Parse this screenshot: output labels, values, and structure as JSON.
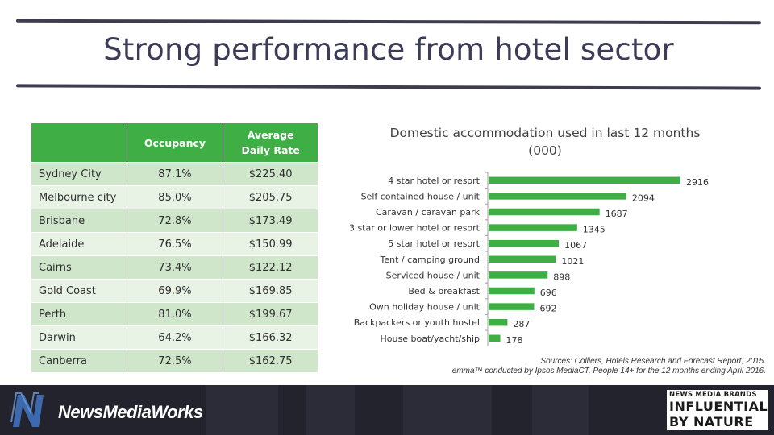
{
  "page": {
    "title": "Strong performance from hotel sector"
  },
  "table": {
    "headers": [
      "",
      "Occupancy",
      "Average Daily Rate"
    ],
    "header_color": "#3eae45",
    "rows": [
      {
        "city": "Sydney City",
        "occupancy": "87.1%",
        "adr": "$225.40"
      },
      {
        "city": "Melbourne city",
        "occupancy": "85.0%",
        "adr": "$205.75"
      },
      {
        "city": "Brisbane",
        "occupancy": "72.8%",
        "adr": "$173.49"
      },
      {
        "city": "Adelaide",
        "occupancy": "76.5%",
        "adr": "$150.99"
      },
      {
        "city": "Cairns",
        "occupancy": "73.4%",
        "adr": "$122.12"
      },
      {
        "city": "Gold Coast",
        "occupancy": "69.9%",
        "adr": "$169.85"
      },
      {
        "city": "Perth",
        "occupancy": "81.0%",
        "adr": "$199.67"
      },
      {
        "city": "Darwin",
        "occupancy": "64.2%",
        "adr": "$166.32"
      },
      {
        "city": "Canberra",
        "occupancy": "72.5%",
        "adr": "$162.75"
      }
    ]
  },
  "chart_data": {
    "type": "bar",
    "orientation": "horizontal",
    "title_line1": "Domestic accommodation used in last 12 months",
    "title_line2": "(000)",
    "categories": [
      "4 star hotel or resort",
      "Self contained house / unit",
      "Caravan / caravan park",
      "3 star or lower hotel or resort",
      "5 star hotel or resort",
      "Tent / camping ground",
      "Serviced house / unit",
      "Bed & breakfast",
      "Own holiday house / unit",
      "Backpackers or youth hostel",
      "House boat/yacht/ship"
    ],
    "values": [
      2916,
      2094,
      1687,
      1345,
      1067,
      1021,
      898,
      696,
      692,
      287,
      178
    ],
    "xlim": [
      0,
      3500
    ],
    "data_labels": true,
    "grid": false,
    "bar_color": "#3eae45"
  },
  "sources": {
    "line1": "Sources: Colliers, Hotels Research and Forecast Report, 2015.",
    "line2": "emma™ conducted by Ipsos MediaCT, People 14+ for the 12 months ending April 2016."
  },
  "footer": {
    "logo_text": "NewsMediaWorks",
    "badge_line1": "NEWS MEDIA BRANDS",
    "badge_line2": "INFLUENTIAL",
    "badge_line3": "BY NATURE"
  }
}
